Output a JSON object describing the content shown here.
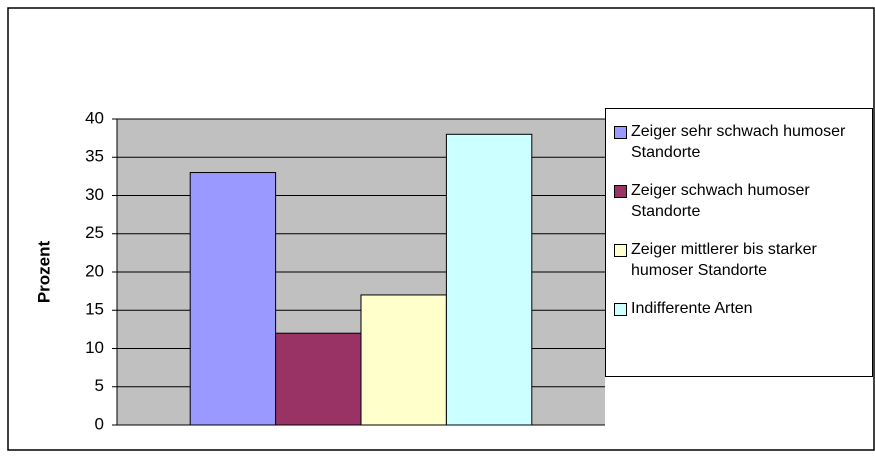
{
  "chart_data": {
    "type": "bar",
    "ylabel": "Prozent",
    "categories": [
      null
    ],
    "series": [
      {
        "name": "Zeiger sehr schwach humoser Standorte",
        "color": "#9999ff",
        "values": [
          33
        ]
      },
      {
        "name": "Zeiger schwach humoser Standorte",
        "color": "#993366",
        "values": [
          12
        ]
      },
      {
        "name": "Zeiger mittlerer bis starker humoser Standorte",
        "color": "#ffffcc",
        "values": [
          17
        ]
      },
      {
        "name": "Indifferente Arten",
        "color": "#ccffff",
        "values": [
          38
        ]
      }
    ],
    "ylim": [
      0,
      40
    ],
    "yticks": [
      0,
      5,
      10,
      15,
      20,
      25,
      30,
      35,
      40
    ],
    "grid": true,
    "legend": "right",
    "plot_background": "#c0c0c0"
  }
}
